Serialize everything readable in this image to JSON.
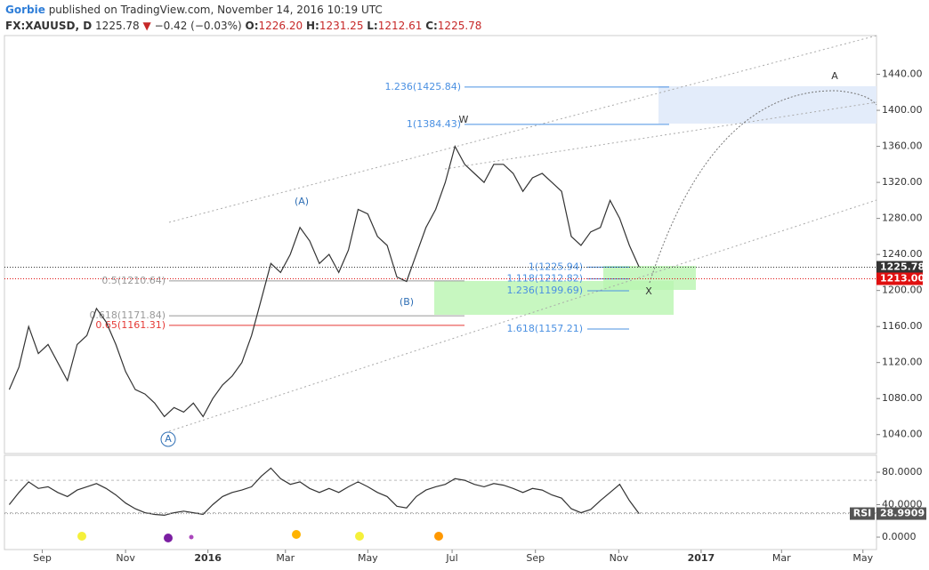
{
  "header": {
    "author": "Gorbie",
    "published": "published on TradingView.com, November 14, 2016 10:19 UTC",
    "symbol": "FX:XAUUSD, D",
    "last": "1225.78",
    "change": "−0.42 (−0.03%)",
    "open_label": "O:",
    "open": "1226.20",
    "high_label": "H:",
    "high": "1231.25",
    "low_label": "L:",
    "low": "1212.61",
    "close_label": "C:",
    "close": "1225.78"
  },
  "chart_data": [
    {
      "type": "line",
      "color": "#333333",
      "values": [
        1090,
        1115,
        1160,
        1130,
        1140,
        1120,
        1100,
        1140,
        1150,
        1180,
        1165,
        1140,
        1110,
        1090,
        1085,
        1075,
        1060,
        1070,
        1065,
        1075,
        1060,
        1080,
        1095,
        1105,
        1120,
        1150,
        1190,
        1230,
        1220,
        1240,
        1270,
        1255,
        1230,
        1240,
        1220,
        1245,
        1290,
        1285,
        1260,
        1250,
        1215,
        1210,
        1240,
        1270,
        1290,
        1320,
        1360,
        1340,
        1330,
        1320,
        1340,
        1340,
        1330,
        1310,
        1325,
        1330,
        1320,
        1310,
        1260,
        1250,
        1265,
        1270,
        1300,
        1280,
        1250,
        1226
      ],
      "xlim": [
        0,
        90
      ],
      "ylim": [
        1019,
        1483
      ],
      "xticks": [
        {
          "value": 3.9,
          "label": "Sep"
        },
        {
          "value": 12.5,
          "label": "Nov"
        },
        {
          "value": 21.0,
          "label": "2016"
        },
        {
          "value": 29.0,
          "label": "Mar"
        },
        {
          "value": 37.5,
          "label": "May"
        },
        {
          "value": 46.2,
          "label": "Jul"
        },
        {
          "value": 54.8,
          "label": "Sep"
        },
        {
          "value": 63.4,
          "label": "Nov"
        },
        {
          "value": 71.9,
          "label": "2017"
        },
        {
          "value": 80.2,
          "label": "Mar"
        },
        {
          "value": 88.6,
          "label": "May"
        }
      ],
      "yticks": [
        {
          "value": 1040,
          "label": "1040.00"
        },
        {
          "value": 1080,
          "label": "1080.00"
        },
        {
          "value": 1120,
          "label": "1120.00"
        },
        {
          "value": 1160,
          "label": "1160.00"
        },
        {
          "value": 1200,
          "label": "1200.00"
        },
        {
          "value": 1240,
          "label": "1240.00"
        },
        {
          "value": 1280,
          "label": "1280.00"
        },
        {
          "value": 1320,
          "label": "1320.00"
        },
        {
          "value": 1360,
          "label": "1360.00"
        },
        {
          "value": 1400,
          "label": "1400.00"
        },
        {
          "value": 1440,
          "label": "1440.00"
        }
      ],
      "levels": [
        {
          "label": "1.236(1425.84)",
          "value": 1425.84,
          "color": "#4a90e2"
        },
        {
          "label": "1(1384.43)",
          "value": 1384.43,
          "color": "#4a90e2"
        },
        {
          "label": "0.5(1210.64)",
          "value": 1210.64,
          "color": "#999999"
        },
        {
          "label": "0.618(1171.84)",
          "value": 1171.84,
          "color": "#999999"
        },
        {
          "label": "0.65(1161.31)",
          "value": 1161.31,
          "color": "#e53935"
        },
        {
          "label": "1(1225.94)",
          "value": 1225.94,
          "color": "#4a90e2"
        },
        {
          "label": "1.118(1212.82)",
          "value": 1212.82,
          "color": "#4a90e2"
        },
        {
          "label": "1.236(1199.69)",
          "value": 1199.69,
          "color": "#4a90e2"
        },
        {
          "label": "1.618(1157.21)",
          "value": 1157.21,
          "color": "#4a90e2"
        }
      ],
      "price_labels": [
        {
          "value": 1225.78,
          "label": "1225.78",
          "color": "#333333"
        },
        {
          "value": 1213.0,
          "label": "1213.00",
          "color": "#e01010"
        }
      ],
      "annotations": [
        "(A)",
        "(B)",
        "W",
        "X",
        "A",
        "A"
      ]
    },
    {
      "type": "line",
      "name": "RSI",
      "color": "#333333",
      "values": [
        40,
        55,
        68,
        60,
        62,
        55,
        50,
        58,
        62,
        66,
        60,
        52,
        42,
        35,
        30,
        28,
        27,
        30,
        32,
        30,
        28,
        40,
        50,
        55,
        58,
        62,
        75,
        85,
        72,
        65,
        68,
        60,
        55,
        60,
        55,
        62,
        68,
        62,
        55,
        50,
        38,
        36,
        50,
        58,
        62,
        65,
        72,
        70,
        65,
        62,
        66,
        64,
        60,
        55,
        60,
        58,
        52,
        48,
        35,
        30,
        34,
        45,
        55,
        65,
        45,
        29
      ],
      "xlim": [
        0,
        90
      ],
      "ylim": [
        -14.2,
        100.8
      ],
      "yticks": [
        {
          "value": 0,
          "label": "0.0000"
        },
        {
          "value": 40,
          "label": "40.0000"
        },
        {
          "value": 80,
          "label": "80.0000"
        }
      ],
      "last": {
        "value": 28.9909,
        "label": "28.9909"
      }
    }
  ]
}
